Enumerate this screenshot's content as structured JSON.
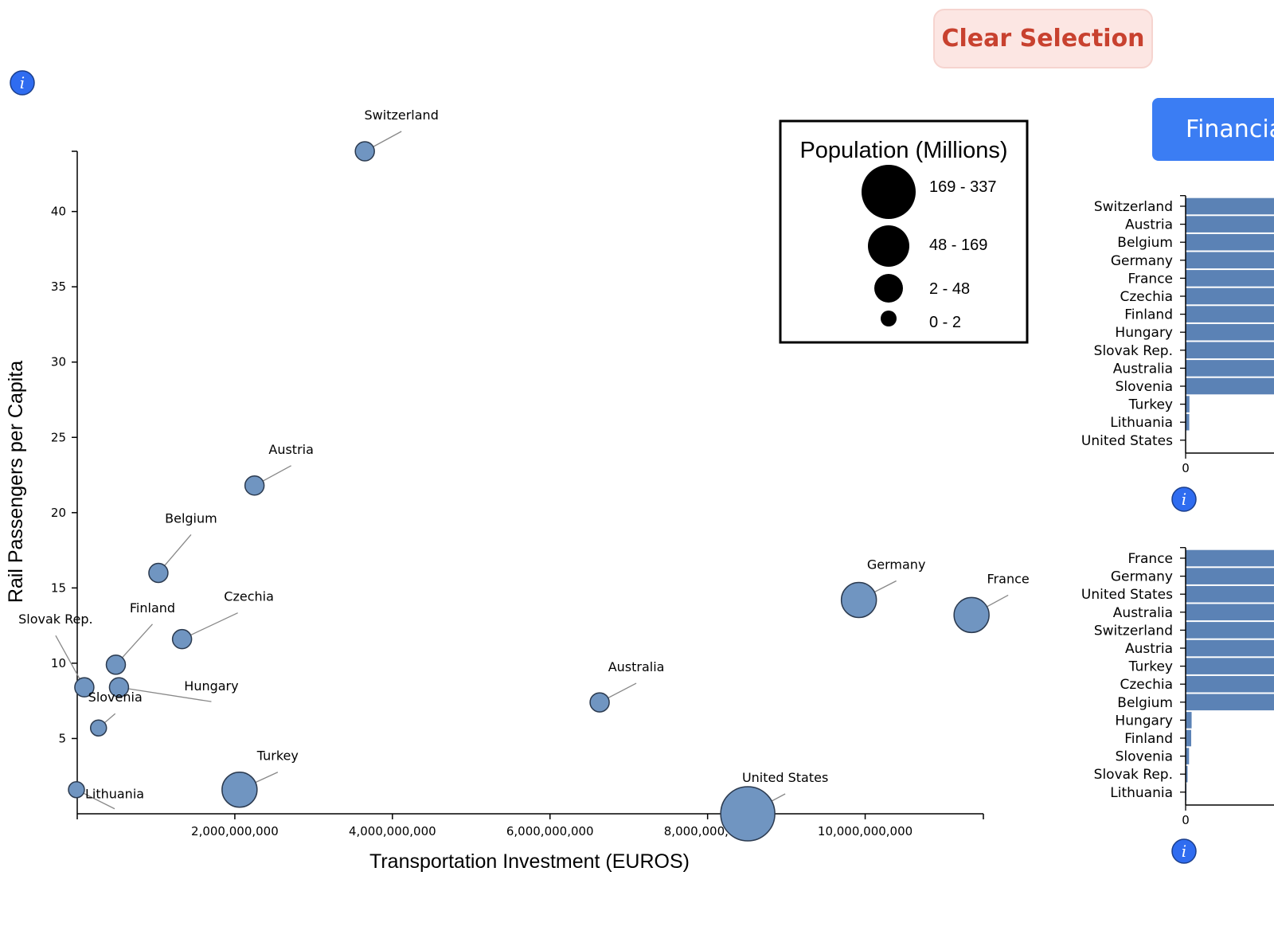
{
  "buttons": {
    "clear_label": "Clear Selection",
    "financial_label": "Financial"
  },
  "info_icon_glyph": "i",
  "colors": {
    "bubble_fill": "#7095c1",
    "bubble_stroke": "#2b3a4f",
    "bar_fill": "#5b82b5",
    "info_fill": "#2f6cf0",
    "clear_text": "#c8412f",
    "clear_bg": "#fce6e3",
    "fin_bg": "#3b7df3"
  },
  "chart_data": [
    {
      "type": "scatter",
      "title": "",
      "xlabel": "Transportation Investment (EUROS)",
      "ylabel": "Rail Passengers per Capita",
      "xlim": [
        0,
        11500000000
      ],
      "ylim": [
        0,
        44
      ],
      "x_ticks": [
        2000000000,
        4000000000,
        6000000000,
        8000000000,
        10000000000
      ],
      "x_tick_labels": [
        "2,000,000,000",
        "4,000,000,000",
        "6,000,000,000",
        "8,000,000,000",
        "10,000,000,000"
      ],
      "y_ticks": [
        5,
        10,
        15,
        20,
        25,
        30,
        35,
        40
      ],
      "y_tick_labels": [
        "5",
        "10",
        "15",
        "20",
        "25",
        "30",
        "35",
        "40"
      ],
      "size_legend": {
        "title": "Population (Millions)",
        "bins": [
          "169 - 337",
          "48 - 169",
          "2 - 48",
          "0 - 2"
        ]
      },
      "points": [
        {
          "country": "Switzerland",
          "x": 3650000000,
          "y": 44.0,
          "size_bin": "2 - 48"
        },
        {
          "country": "Austria",
          "x": 2250000000,
          "y": 21.8,
          "size_bin": "2 - 48"
        },
        {
          "country": "Belgium",
          "x": 1030000000,
          "y": 16.0,
          "size_bin": "2 - 48"
        },
        {
          "country": "Czechia",
          "x": 1330000000,
          "y": 11.6,
          "size_bin": "2 - 48"
        },
        {
          "country": "Finland",
          "x": 490000000,
          "y": 9.9,
          "size_bin": "2 - 48"
        },
        {
          "country": "Slovak Rep.",
          "x": 90000000,
          "y": 8.4,
          "size_bin": "2 - 48"
        },
        {
          "country": "Hungary",
          "x": 530000000,
          "y": 8.4,
          "size_bin": "2 - 48"
        },
        {
          "country": "Slovenia",
          "x": 270000000,
          "y": 5.7,
          "size_bin": "0 - 2"
        },
        {
          "country": "Lithuania",
          "x": -10000000,
          "y": 1.6,
          "size_bin": "0 - 2"
        },
        {
          "country": "Turkey",
          "x": 2060000000,
          "y": 1.6,
          "size_bin": "48 - 169"
        },
        {
          "country": "Australia",
          "x": 6630000000,
          "y": 7.4,
          "size_bin": "2 - 48"
        },
        {
          "country": "Germany",
          "x": 9920000000,
          "y": 14.2,
          "size_bin": "48 - 169"
        },
        {
          "country": "France",
          "x": 11350000000,
          "y": 13.2,
          "size_bin": "48 - 169"
        },
        {
          "country": "United States",
          "x": 8510000000,
          "y": 0.0,
          "size_bin": "169 - 337"
        }
      ]
    },
    {
      "type": "bar",
      "orientation": "horizontal",
      "categories": [
        "Switzerland",
        "Austria",
        "Belgium",
        "Germany",
        "France",
        "Czechia",
        "Finland",
        "Hungary",
        "Slovak Rep.",
        "Australia",
        "Slovenia",
        "Turkey",
        "Lithuania",
        "United States"
      ],
      "values": [
        100,
        100,
        100,
        100,
        100,
        100,
        100,
        100,
        100,
        100,
        100,
        3.7,
        3.5,
        0
      ],
      "x_ticks": [
        "0"
      ]
    },
    {
      "type": "bar",
      "orientation": "horizontal",
      "categories": [
        "France",
        "Germany",
        "United States",
        "Australia",
        "Switzerland",
        "Austria",
        "Turkey",
        "Czechia",
        "Belgium",
        "Hungary",
        "Finland",
        "Slovenia",
        "Slovak Rep.",
        "Lithuania"
      ],
      "values": [
        100,
        100,
        100,
        100,
        100,
        100,
        100,
        100,
        100,
        5.8,
        5.4,
        3.3,
        1.9,
        0.8
      ],
      "x_ticks": [
        "0"
      ]
    }
  ]
}
